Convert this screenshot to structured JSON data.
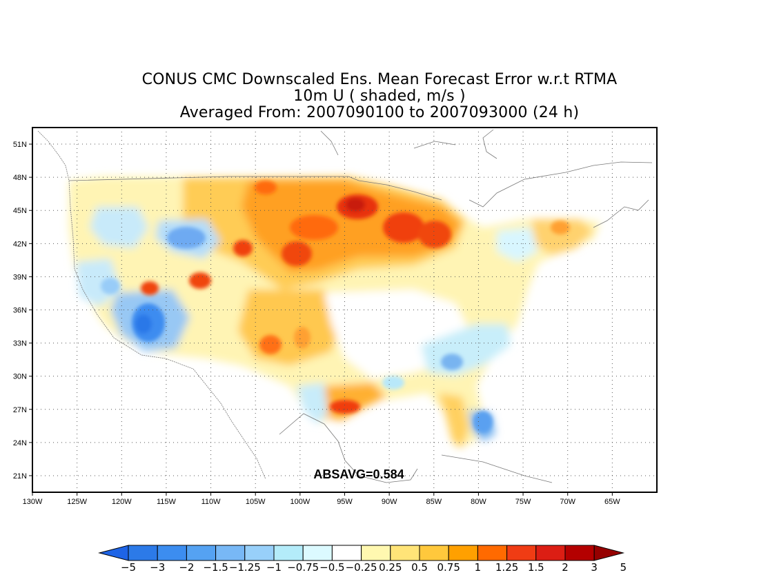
{
  "title": {
    "line1": "CONUS CMC Downscaled Ens. Mean Forecast Error w.r.t RTMA",
    "line2": "10m U ( shaded, m/s )",
    "line3": "Averaged From: 2007090100 to 2007093000 (24 h)"
  },
  "annotation": "ABSAVG=0.584",
  "map": {
    "lon_range": [
      -130,
      -60
    ],
    "lat_range": [
      19.5,
      52.5
    ],
    "lon_ticks": [
      "130W",
      "125W",
      "120W",
      "115W",
      "110W",
      "105W",
      "100W",
      "95W",
      "90W",
      "85W",
      "80W",
      "75W",
      "70W",
      "65W"
    ],
    "lat_ticks": [
      "21N",
      "24N",
      "27N",
      "30N",
      "33N",
      "36N",
      "39N",
      "42N",
      "45N",
      "48N",
      "51N"
    ],
    "grid": "dotted"
  },
  "colorbar": {
    "labels": [
      "−5",
      "−3",
      "−2",
      "−1.5",
      "−1.25",
      "−1",
      "−0.75",
      "−0.5",
      "−0.25",
      "0.25",
      "0.5",
      "0.75",
      "1",
      "1.25",
      "1.5",
      "2",
      "3",
      "5"
    ],
    "colors": [
      "#1e64e6",
      "#2c7ae8",
      "#3c8df0",
      "#55a2f2",
      "#78b8f6",
      "#98d0fa",
      "#b4ecfa",
      "#dcfaff",
      "#ffffff",
      "#fff8b0",
      "#ffe478",
      "#ffc83c",
      "#ffa000",
      "#ff6a00",
      "#f03c14",
      "#dc1e14",
      "#b40000",
      "#960000"
    ]
  }
}
